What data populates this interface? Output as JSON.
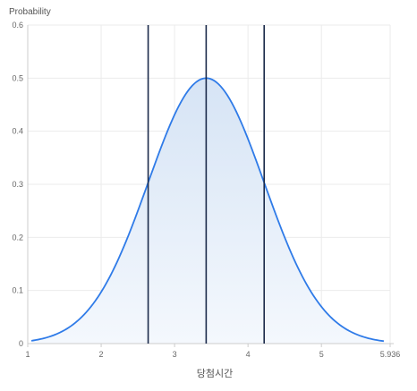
{
  "chart_data": {
    "type": "area",
    "ylabel": "Probability",
    "xlabel": "당첨시간",
    "xlim": [
      1.0,
      5.936
    ],
    "ylim": [
      0,
      0.6
    ],
    "x_ticks": [
      1,
      2,
      3,
      4,
      5,
      5.936
    ],
    "x_tick_labels": [
      "1",
      "2",
      "3",
      "4",
      "5",
      "5.936"
    ],
    "y_ticks": [
      0,
      0.1,
      0.2,
      0.3,
      0.4,
      0.5,
      0.6
    ],
    "y_tick_labels": [
      "0",
      "0.1",
      "0.2",
      "0.3",
      "0.4",
      "0.5",
      "0.6"
    ],
    "grid": true,
    "curve": {
      "distribution": "normal",
      "mean": 3.43,
      "std": 0.79,
      "x_start": 1.05,
      "x_end": 5.85
    },
    "vertical_lines": [
      {
        "x": 2.64
      },
      {
        "x": 3.43
      },
      {
        "x": 4.22
      }
    ],
    "colors": {
      "curve": "#2f7be8",
      "fill_top": "#d6e4f5",
      "fill_bottom": "#f4f8fd",
      "vertical_line": "#1b2a4a",
      "grid": "#ebebeb",
      "axis": "#cccccc"
    }
  }
}
